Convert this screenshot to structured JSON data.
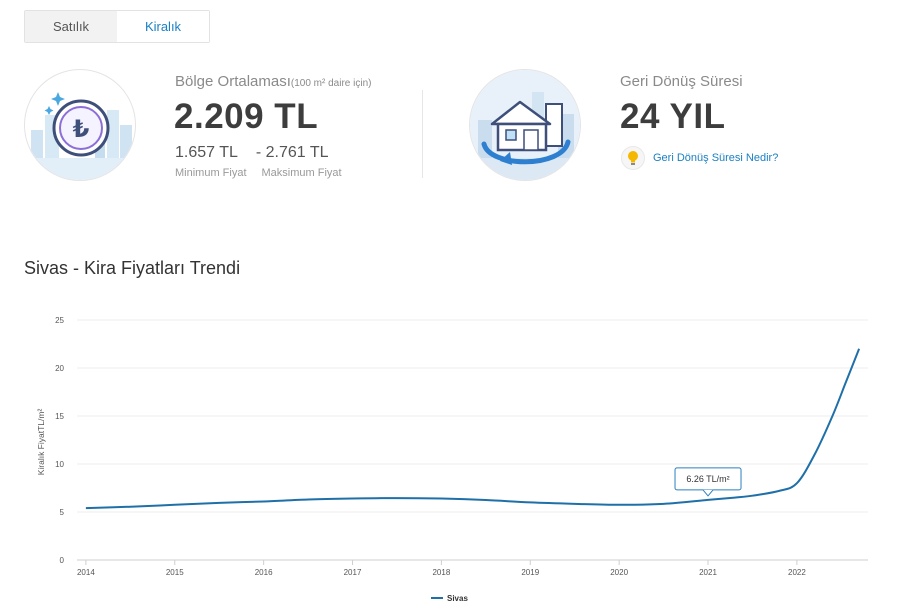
{
  "tabs": [
    {
      "label": "Satılık",
      "active": false
    },
    {
      "label": "Kiralık",
      "active": true
    }
  ],
  "average": {
    "title": "Bölge Ortalaması",
    "note": "(100 m² daire için)",
    "value": "2.209 TL",
    "min": "1.657 TL",
    "max": "- 2.761 TL",
    "min_label": "Minimum Fiyat",
    "max_label": "Maksimum Fiyat"
  },
  "payback": {
    "title": "Geri Dönüş Süresi",
    "value": "24 YIL",
    "help_link": "Geri Dönüş Süresi Nedir?"
  },
  "icons": {
    "average": "lira-coin-icon",
    "payback": "house-return-icon",
    "help": "lightbulb-icon"
  },
  "colors": {
    "accent": "#1a7fc4",
    "line": "#1f6fa8",
    "bulb": "#f5b800"
  },
  "chart_data": {
    "type": "line",
    "title": "Sivas - Kira Fiyatları Trendi",
    "ylabel": "Kiralık FiyatTL/m²",
    "xlabel": "",
    "ylim": [
      0,
      25
    ],
    "yticks": [
      0,
      5,
      10,
      15,
      20,
      25
    ],
    "xlim": [
      2013.9,
      2022.8
    ],
    "xticks": [
      2014,
      2015,
      2016,
      2017,
      2018,
      2019,
      2020,
      2021,
      2022
    ],
    "grid": true,
    "legend": "bottom-center",
    "series": [
      {
        "name": "Sivas",
        "x": [
          2014,
          2014.5,
          2015,
          2015.5,
          2016,
          2016.5,
          2017,
          2017.5,
          2018,
          2018.5,
          2019,
          2019.5,
          2020,
          2020.5,
          2021,
          2021.3,
          2021.5,
          2021.8,
          2022,
          2022.2,
          2022.4,
          2022.55,
          2022.7
        ],
        "values": [
          5.4,
          5.55,
          5.75,
          5.95,
          6.1,
          6.3,
          6.4,
          6.45,
          6.4,
          6.25,
          6.0,
          5.85,
          5.75,
          5.85,
          6.26,
          6.5,
          6.7,
          7.2,
          8.0,
          11.0,
          15.0,
          18.5,
          22.0
        ]
      }
    ],
    "tooltip": {
      "x": 2021,
      "label": "6.26 TL/m²"
    }
  }
}
